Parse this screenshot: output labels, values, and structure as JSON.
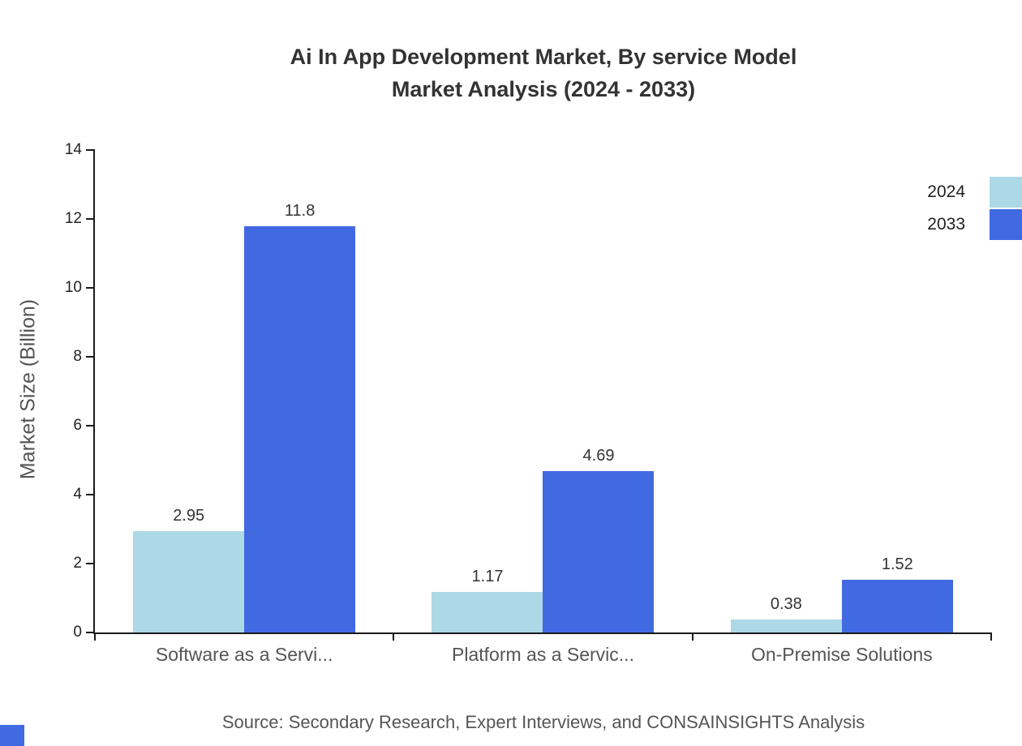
{
  "title": {
    "line1": "Ai In App Development Market, By service Model",
    "line2": "Market Analysis (2024 - 2033)"
  },
  "source": "Source: Secondary Research, Expert Interviews, and CONSAINSIGHTS Analysis",
  "chart_data": {
    "type": "bar",
    "categories": [
      "Software as a Servi...",
      "Platform as a Servic...",
      "On-Premise Solutions"
    ],
    "series": [
      {
        "name": "2024",
        "color": "#ADD8E6",
        "values": [
          2.95,
          1.17,
          0.38
        ]
      },
      {
        "name": "2033",
        "color": "#4169E1",
        "values": [
          11.8,
          4.69,
          1.52
        ]
      }
    ],
    "value_labels": {
      "2024": [
        "2.95",
        "1.17",
        "0.38"
      ],
      "2033": [
        "11.8",
        "4.69",
        "1.52"
      ]
    },
    "title": "Ai In App Development Market, By service Model Market Analysis (2024 - 2033)",
    "xlabel": "",
    "ylabel": "Market Size (Billion)",
    "ylim": [
      0,
      14
    ],
    "ytick_step": 2,
    "ytick_labels": [
      "0",
      "2",
      "4",
      "6",
      "8",
      "10",
      "12",
      "14"
    ],
    "grid": false,
    "legend_position": "top-right"
  }
}
